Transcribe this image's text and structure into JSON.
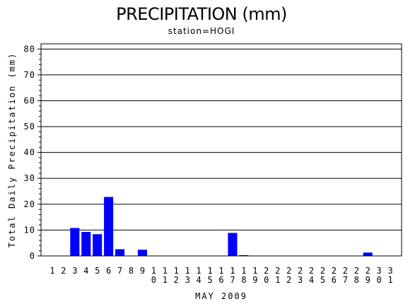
{
  "chart_data": {
    "type": "bar",
    "title": "PRECIPITATION (mm)",
    "subtitle": "station=HOGI",
    "ylabel": "Total Daily Precipitation (mm)",
    "xlabel": "MAY 2009",
    "ylim": [
      0,
      82
    ],
    "yticks": [
      0,
      10,
      20,
      30,
      40,
      50,
      60,
      70,
      80
    ],
    "grid": true,
    "categories": [
      "1",
      "2",
      "3",
      "4",
      "5",
      "6",
      "7",
      "8",
      "9",
      "10",
      "11",
      "12",
      "13",
      "14",
      "15",
      "16",
      "17",
      "18",
      "19",
      "20",
      "21",
      "22",
      "23",
      "24",
      "25",
      "26",
      "27",
      "28",
      "29",
      "30",
      "31"
    ],
    "values": [
      0,
      0,
      10.8,
      9.3,
      8.4,
      22.8,
      2.6,
      0,
      2.4,
      0,
      0,
      0,
      0,
      0,
      0,
      0,
      8.9,
      0.3,
      0,
      0,
      0,
      0,
      0,
      0,
      0,
      0,
      0,
      0,
      1.3,
      0,
      0
    ],
    "bar_color": "#0000ff"
  }
}
